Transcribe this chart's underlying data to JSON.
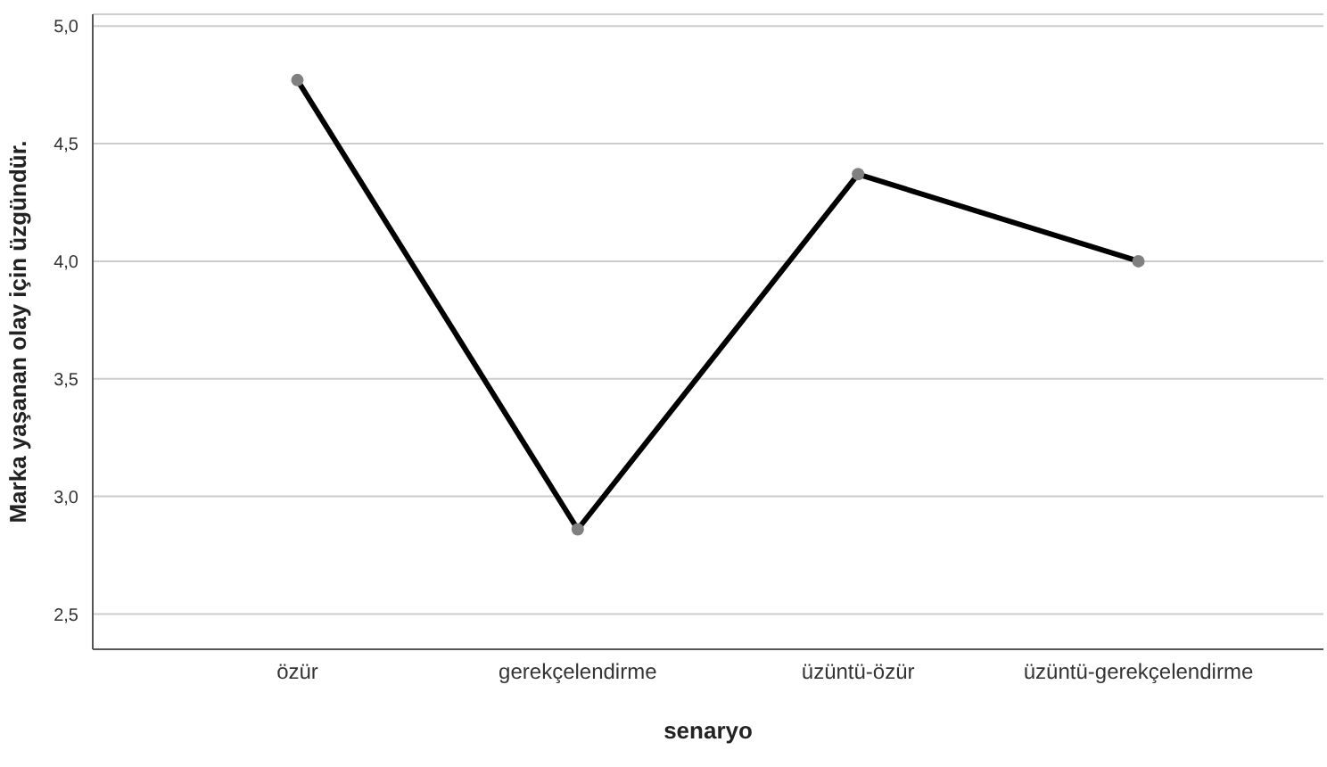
{
  "chart_data": {
    "type": "line",
    "xlabel": "senaryo",
    "ylabel": "Marka yaşanan olay için üzgündür.",
    "categories": [
      "özür",
      "gerekçelendirme",
      "üzüntü-özür",
      "üzüntü-gerekçelendirme"
    ],
    "series": [
      {
        "color": "#000000",
        "values": [
          4.77,
          2.86,
          4.37,
          4.0
        ]
      }
    ],
    "ylim": [
      2.35,
      5.05
    ],
    "yticks": [
      {
        "value": 2.5,
        "label": "2,5"
      },
      {
        "value": 3.0,
        "label": "3,0"
      },
      {
        "value": 3.5,
        "label": "3,5"
      },
      {
        "value": 4.0,
        "label": "4,0"
      },
      {
        "value": 4.5,
        "label": "4,5"
      },
      {
        "value": 5.0,
        "label": "5,0"
      }
    ],
    "grid": "y",
    "marker": "circle",
    "line_style": "solid"
  }
}
